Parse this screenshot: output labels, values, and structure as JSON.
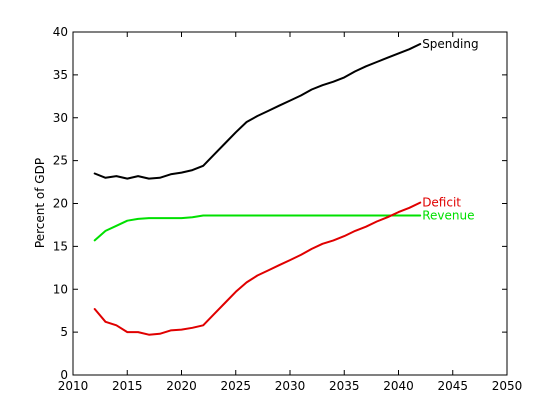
{
  "chart_data": {
    "type": "line",
    "title": "",
    "xlabel": "",
    "ylabel": "Percent of GDP",
    "xlim": [
      2010,
      2050
    ],
    "ylim": [
      0,
      40
    ],
    "xticks": [
      2010,
      2015,
      2020,
      2025,
      2030,
      2035,
      2040,
      2045,
      2050
    ],
    "yticks": [
      0,
      5,
      10,
      15,
      20,
      25,
      30,
      35,
      40
    ],
    "grid": false,
    "legend": "inline-labels",
    "series": [
      {
        "name": "Spending",
        "color": "#000000",
        "x": [
          2012,
          2013,
          2014,
          2015,
          2016,
          2017,
          2018,
          2019,
          2020,
          2021,
          2022,
          2023,
          2024,
          2025,
          2026,
          2027,
          2028,
          2029,
          2030,
          2031,
          2032,
          2033,
          2034,
          2035,
          2036,
          2037,
          2038,
          2039,
          2040,
          2041,
          2042
        ],
        "y": [
          23.5,
          23.0,
          23.2,
          22.9,
          23.2,
          22.9,
          23.0,
          23.4,
          23.6,
          23.9,
          24.4,
          25.7,
          27.0,
          28.3,
          29.5,
          30.2,
          30.8,
          31.4,
          32.0,
          32.6,
          33.3,
          33.8,
          34.2,
          34.7,
          35.4,
          36.0,
          36.5,
          37.0,
          37.5,
          38.0,
          38.6
        ]
      },
      {
        "name": "Revenue",
        "color": "#00e000",
        "x": [
          2012,
          2013,
          2014,
          2015,
          2016,
          2017,
          2018,
          2019,
          2020,
          2021,
          2022,
          2023,
          2024,
          2025,
          2026,
          2027,
          2028,
          2029,
          2030,
          2031,
          2032,
          2033,
          2034,
          2035,
          2036,
          2037,
          2038,
          2039,
          2040,
          2041,
          2042
        ],
        "y": [
          15.7,
          16.8,
          17.4,
          18.0,
          18.2,
          18.3,
          18.3,
          18.3,
          18.3,
          18.4,
          18.6,
          18.6,
          18.6,
          18.6,
          18.6,
          18.6,
          18.6,
          18.6,
          18.6,
          18.6,
          18.6,
          18.6,
          18.6,
          18.6,
          18.6,
          18.6,
          18.6,
          18.6,
          18.6,
          18.6,
          18.6
        ]
      },
      {
        "name": "Deficit",
        "color": "#e00000",
        "x": [
          2012,
          2013,
          2014,
          2015,
          2016,
          2017,
          2018,
          2019,
          2020,
          2021,
          2022,
          2023,
          2024,
          2025,
          2026,
          2027,
          2028,
          2029,
          2030,
          2031,
          2032,
          2033,
          2034,
          2035,
          2036,
          2037,
          2038,
          2039,
          2040,
          2041,
          2042
        ],
        "y": [
          7.7,
          6.2,
          5.8,
          5.0,
          5.0,
          4.7,
          4.8,
          5.2,
          5.3,
          5.5,
          5.8,
          7.1,
          8.4,
          9.7,
          10.8,
          11.6,
          12.2,
          12.8,
          13.4,
          14.0,
          14.7,
          15.3,
          15.7,
          16.2,
          16.8,
          17.3,
          17.9,
          18.4,
          19.0,
          19.5,
          20.1
        ]
      }
    ]
  }
}
